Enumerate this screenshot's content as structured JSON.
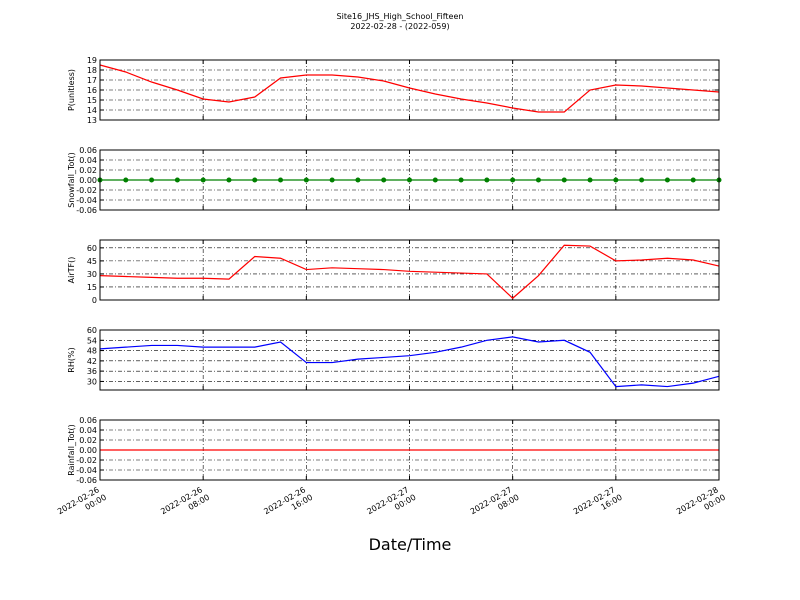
{
  "title": "Site16_JHS_High_School_Fifteen",
  "subtitle": "2022-02-28 - (2022-059)",
  "xlabel": "Date/Time",
  "chart_data": [
    {
      "type": "line",
      "ylabel": "P(unitless)",
      "color": "#ff0000",
      "marker": false,
      "grid": true,
      "x": [
        "2022-02-26 00:00",
        "2022-02-26 02:00",
        "2022-02-26 04:00",
        "2022-02-26 06:00",
        "2022-02-26 08:00",
        "2022-02-26 10:00",
        "2022-02-26 12:00",
        "2022-02-26 14:00",
        "2022-02-26 16:00",
        "2022-02-26 18:00",
        "2022-02-26 20:00",
        "2022-02-26 22:00",
        "2022-02-27 00:00",
        "2022-02-27 02:00",
        "2022-02-27 04:00",
        "2022-02-27 06:00",
        "2022-02-27 08:00",
        "2022-02-27 10:00",
        "2022-02-27 12:00",
        "2022-02-27 14:00",
        "2022-02-27 16:00",
        "2022-02-27 18:00",
        "2022-02-27 20:00",
        "2022-02-27 22:00",
        "2022-02-28 00:00"
      ],
      "values": [
        18.5,
        17.8,
        16.8,
        16.0,
        15.1,
        14.8,
        15.3,
        17.2,
        17.5,
        17.5,
        17.3,
        16.9,
        16.2,
        15.6,
        15.1,
        14.7,
        14.2,
        13.8,
        13.8,
        16.0,
        16.5,
        16.4,
        16.2,
        16.0,
        15.8
      ],
      "xlim": [
        "2022-02-26 00:00",
        "2022-02-28 00:00"
      ],
      "xticks": [
        "2022-02-26 00:00",
        "2022-02-26 08:00",
        "2022-02-26 16:00",
        "2022-02-27 00:00",
        "2022-02-27 08:00",
        "2022-02-27 16:00",
        "2022-02-28 00:00"
      ],
      "ylim": [
        13,
        19
      ],
      "yticks": [
        13,
        14,
        15,
        16,
        17,
        18,
        19
      ]
    },
    {
      "type": "line",
      "ylabel": "Snowfall_Tot()",
      "color": "#008000",
      "marker": true,
      "grid": true,
      "x": [
        "2022-02-26 00:00",
        "2022-02-26 02:00",
        "2022-02-26 04:00",
        "2022-02-26 06:00",
        "2022-02-26 08:00",
        "2022-02-26 10:00",
        "2022-02-26 12:00",
        "2022-02-26 14:00",
        "2022-02-26 16:00",
        "2022-02-26 18:00",
        "2022-02-26 20:00",
        "2022-02-26 22:00",
        "2022-02-27 00:00",
        "2022-02-27 02:00",
        "2022-02-27 04:00",
        "2022-02-27 06:00",
        "2022-02-27 08:00",
        "2022-02-27 10:00",
        "2022-02-27 12:00",
        "2022-02-27 14:00",
        "2022-02-27 16:00",
        "2022-02-27 18:00",
        "2022-02-27 20:00",
        "2022-02-27 22:00",
        "2022-02-28 00:00"
      ],
      "values": [
        0,
        0,
        0,
        0,
        0,
        0,
        0,
        0,
        0,
        0,
        0,
        0,
        0,
        0,
        0,
        0,
        0,
        0,
        0,
        0,
        0,
        0,
        0,
        0,
        0
      ],
      "xlim": [
        "2022-02-26 00:00",
        "2022-02-28 00:00"
      ],
      "xticks": [
        "2022-02-26 00:00",
        "2022-02-26 08:00",
        "2022-02-26 16:00",
        "2022-02-27 00:00",
        "2022-02-27 08:00",
        "2022-02-27 16:00",
        "2022-02-28 00:00"
      ],
      "ylim": [
        -0.06,
        0.06
      ],
      "yticks": [
        -0.06,
        -0.04,
        -0.02,
        {
          "value": 0,
          "label": "0.00"
        },
        0.02,
        0.04,
        0.06
      ]
    },
    {
      "type": "line",
      "ylabel": "AirTF()",
      "color": "#ff0000",
      "marker": false,
      "grid": true,
      "x": [
        "2022-02-26 00:00",
        "2022-02-26 02:00",
        "2022-02-26 04:00",
        "2022-02-26 06:00",
        "2022-02-26 08:00",
        "2022-02-26 10:00",
        "2022-02-26 12:00",
        "2022-02-26 14:00",
        "2022-02-26 16:00",
        "2022-02-26 18:00",
        "2022-02-26 20:00",
        "2022-02-26 22:00",
        "2022-02-27 00:00",
        "2022-02-27 02:00",
        "2022-02-27 04:00",
        "2022-02-27 06:00",
        "2022-02-27 08:00",
        "2022-02-27 10:00",
        "2022-02-27 12:00",
        "2022-02-27 14:00",
        "2022-02-27 16:00",
        "2022-02-27 18:00",
        "2022-02-27 20:00",
        "2022-02-27 22:00",
        "2022-02-28 00:00"
      ],
      "values": [
        28,
        27,
        26,
        25,
        25,
        24,
        50,
        48,
        35,
        37,
        36,
        35,
        33,
        32,
        31,
        30,
        2,
        28,
        63,
        62,
        45,
        46,
        48,
        46,
        39
      ],
      "xlim": [
        "2022-02-26 00:00",
        "2022-02-28 00:00"
      ],
      "xticks": [
        "2022-02-26 00:00",
        "2022-02-26 08:00",
        "2022-02-26 16:00",
        "2022-02-27 00:00",
        "2022-02-27 08:00",
        "2022-02-27 16:00",
        "2022-02-28 00:00"
      ],
      "ylim": [
        0,
        69
      ],
      "yticks": [
        0,
        15,
        30,
        45,
        60
      ]
    },
    {
      "type": "line",
      "ylabel": "RH(%)",
      "color": "#0000ff",
      "marker": false,
      "grid": true,
      "x": [
        "2022-02-26 00:00",
        "2022-02-26 02:00",
        "2022-02-26 04:00",
        "2022-02-26 06:00",
        "2022-02-26 08:00",
        "2022-02-26 10:00",
        "2022-02-26 12:00",
        "2022-02-26 14:00",
        "2022-02-26 16:00",
        "2022-02-26 18:00",
        "2022-02-26 20:00",
        "2022-02-26 22:00",
        "2022-02-27 00:00",
        "2022-02-27 02:00",
        "2022-02-27 04:00",
        "2022-02-27 06:00",
        "2022-02-27 08:00",
        "2022-02-27 10:00",
        "2022-02-27 12:00",
        "2022-02-27 14:00",
        "2022-02-27 16:00",
        "2022-02-27 18:00",
        "2022-02-27 20:00",
        "2022-02-27 22:00",
        "2022-02-28 00:00"
      ],
      "values": [
        49,
        50,
        51,
        51,
        50,
        50,
        50,
        53,
        41,
        41,
        43,
        44,
        45,
        47,
        50,
        54,
        56,
        53,
        54,
        47,
        27,
        28,
        27,
        29,
        33
      ],
      "xlim": [
        "2022-02-26 00:00",
        "2022-02-28 00:00"
      ],
      "xticks": [
        "2022-02-26 00:00",
        "2022-02-26 08:00",
        "2022-02-26 16:00",
        "2022-02-27 00:00",
        "2022-02-27 08:00",
        "2022-02-27 16:00",
        "2022-02-28 00:00"
      ],
      "ylim": [
        25,
        60
      ],
      "yticks": [
        30,
        36,
        42,
        48,
        54,
        60
      ]
    },
    {
      "type": "line",
      "ylabel": "Rainfall_Tot()",
      "color": "#ff0000",
      "marker": false,
      "grid": true,
      "x": [
        "2022-02-26 00:00",
        "2022-02-26 02:00",
        "2022-02-26 04:00",
        "2022-02-26 06:00",
        "2022-02-26 08:00",
        "2022-02-26 10:00",
        "2022-02-26 12:00",
        "2022-02-26 14:00",
        "2022-02-26 16:00",
        "2022-02-26 18:00",
        "2022-02-26 20:00",
        "2022-02-26 22:00",
        "2022-02-27 00:00",
        "2022-02-27 02:00",
        "2022-02-27 04:00",
        "2022-02-27 06:00",
        "2022-02-27 08:00",
        "2022-02-27 10:00",
        "2022-02-27 12:00",
        "2022-02-27 14:00",
        "2022-02-27 16:00",
        "2022-02-27 18:00",
        "2022-02-27 20:00",
        "2022-02-27 22:00",
        "2022-02-28 00:00"
      ],
      "values": [
        0,
        0,
        0,
        0,
        0,
        0,
        0,
        0,
        0,
        0,
        0,
        0,
        0,
        0,
        0,
        0,
        0,
        0,
        0,
        0,
        0,
        0,
        0,
        0,
        0
      ],
      "xlim": [
        "2022-02-26 00:00",
        "2022-02-28 00:00"
      ],
      "xticks": [
        "2022-02-26 00:00",
        "2022-02-26 08:00",
        "2022-02-26 16:00",
        "2022-02-27 00:00",
        "2022-02-27 08:00",
        "2022-02-27 16:00",
        "2022-02-28 00:00"
      ],
      "ylim": [
        -0.06,
        0.06
      ],
      "yticks": [
        -0.06,
        -0.04,
        -0.02,
        {
          "value": 0,
          "label": "0.00"
        },
        0.02,
        0.04,
        0.06
      ]
    }
  ]
}
